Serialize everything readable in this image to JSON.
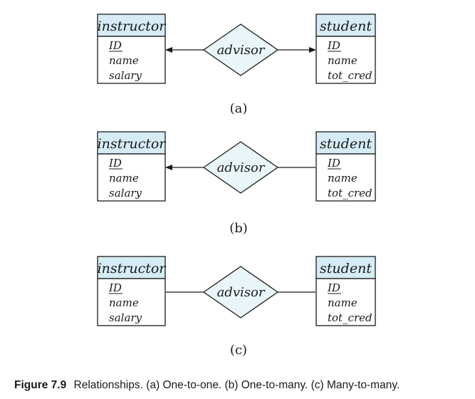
{
  "figure": {
    "number": "Figure 7.9",
    "caption": "Relationships. (a) One-to-one. (b) One-to-many. (c) Many-to-many."
  },
  "colors": {
    "entity_header_fill": "#d6ecf5",
    "diamond_fill": "#e9f5f9",
    "line": "#1a1a1a"
  },
  "diagrams": [
    {
      "label": "(a)",
      "left_entity": {
        "name": "instructor",
        "attributes": [
          "ID",
          "name",
          "salary"
        ],
        "key": "ID"
      },
      "relationship": "advisor",
      "right_entity": {
        "name": "student",
        "attributes": [
          "ID",
          "name",
          "tot_cred"
        ],
        "key": "ID"
      },
      "left_arrow": true,
      "right_arrow": true
    },
    {
      "label": "(b)",
      "left_entity": {
        "name": "instructor",
        "attributes": [
          "ID",
          "name",
          "salary"
        ],
        "key": "ID"
      },
      "relationship": "advisor",
      "right_entity": {
        "name": "student",
        "attributes": [
          "ID",
          "name",
          "tot_cred"
        ],
        "key": "ID"
      },
      "left_arrow": true,
      "right_arrow": false
    },
    {
      "label": "(c)",
      "left_entity": {
        "name": "instructor",
        "attributes": [
          "ID",
          "name",
          "salary"
        ],
        "key": "ID"
      },
      "relationship": "advisor",
      "right_entity": {
        "name": "student",
        "attributes": [
          "ID",
          "name",
          "tot_cred"
        ],
        "key": "ID"
      },
      "left_arrow": false,
      "right_arrow": false
    }
  ]
}
